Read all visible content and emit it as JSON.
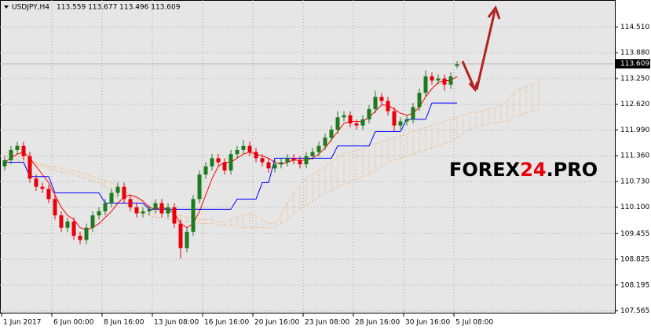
{
  "chart_data": {
    "type": "candlestick",
    "title": "USDJPY,H4",
    "quote": "113.559 113.677 113.496 113.609",
    "watermark": {
      "part1": "FOREX",
      "part2": "24",
      "part3": ".PRO"
    },
    "last_price": {
      "value": 113.609,
      "label": "113.609"
    },
    "xticks": [
      "1 Jun 2017",
      "6 Jun 00:00",
      "8 Jun 16:00",
      "13 Jun 08:00",
      "16 Jun 16:00",
      "20 Jun 16:00",
      "23 Jun 08:00",
      "28 Jun 16:00",
      "30 Jun 16:00",
      "5 Jul 08:00"
    ],
    "ylim": [
      107.5,
      115.17
    ],
    "yticks": [
      {
        "value": 107.565,
        "label": "107.565"
      },
      {
        "value": 108.195,
        "label": "108.195"
      },
      {
        "value": 108.825,
        "label": "108.825"
      },
      {
        "value": 109.455,
        "label": "109.455"
      },
      {
        "value": 110.1,
        "label": "110.100"
      },
      {
        "value": 110.73,
        "label": "110.730"
      },
      {
        "value": 111.36,
        "label": "111.360"
      },
      {
        "value": 111.99,
        "label": "111.990"
      },
      {
        "value": 112.62,
        "label": "112.620"
      },
      {
        "value": 113.25,
        "label": "113.250"
      },
      {
        "value": 113.88,
        "label": "113.880"
      },
      {
        "value": 114.51,
        "label": "114.510"
      }
    ],
    "grid": true,
    "up_color": "#1f7a1f",
    "down_color": "#e8000b",
    "open": [
      111.1,
      111.25,
      111.5,
      111.6,
      111.35,
      110.8,
      110.6,
      110.55,
      110.3,
      109.9,
      109.6,
      109.75,
      109.4,
      109.3,
      109.6,
      109.9,
      110.0,
      110.2,
      110.45,
      110.6,
      110.3,
      110.1,
      109.95,
      110.0,
      110.05,
      110.2,
      109.95,
      110.1,
      109.7,
      109.1,
      109.5,
      110.3,
      110.9,
      111.1,
      111.3,
      111.2,
      111.0,
      111.4,
      111.5,
      111.6,
      111.45,
      111.3,
      111.2,
      111.05,
      111.15,
      111.2,
      111.3,
      111.25,
      111.15,
      111.35,
      111.45,
      111.6,
      111.8,
      112.0,
      112.3,
      112.35,
      112.15,
      112.1,
      112.25,
      112.5,
      112.8,
      112.7,
      112.45,
      112.1,
      112.2,
      112.25,
      112.55,
      112.9,
      113.3,
      113.2,
      113.25,
      113.1,
      113.559
    ],
    "high": [
      111.35,
      111.6,
      111.7,
      111.7,
      111.45,
      110.9,
      110.7,
      110.65,
      110.4,
      110.0,
      109.85,
      109.85,
      109.5,
      109.7,
      110.0,
      110.1,
      110.3,
      110.55,
      110.7,
      110.7,
      110.4,
      110.2,
      110.1,
      110.15,
      110.3,
      110.3,
      110.2,
      110.2,
      109.8,
      109.6,
      110.4,
      111.0,
      111.2,
      111.4,
      111.4,
      111.3,
      111.5,
      111.6,
      111.75,
      111.7,
      111.55,
      111.4,
      111.3,
      111.25,
      111.3,
      111.4,
      111.4,
      111.35,
      111.45,
      111.55,
      111.7,
      111.9,
      112.1,
      112.45,
      112.45,
      112.45,
      112.25,
      112.35,
      112.6,
      112.95,
      112.9,
      112.8,
      112.55,
      112.3,
      112.35,
      112.65,
      113.0,
      113.45,
      113.4,
      113.35,
      113.35,
      113.4,
      113.677
    ],
    "low": [
      111.0,
      111.15,
      111.4,
      111.25,
      110.7,
      110.5,
      110.45,
      110.2,
      109.8,
      109.5,
      109.5,
      109.3,
      109.2,
      109.2,
      109.5,
      109.8,
      109.9,
      110.1,
      110.35,
      110.2,
      110.0,
      109.85,
      109.85,
      109.9,
      109.95,
      109.85,
      109.85,
      109.6,
      108.85,
      109.0,
      109.4,
      110.2,
      110.8,
      111.0,
      111.1,
      110.9,
      110.9,
      111.3,
      111.4,
      111.35,
      111.2,
      111.1,
      110.95,
      110.95,
      111.05,
      111.1,
      111.15,
      111.05,
      111.05,
      111.25,
      111.35,
      111.5,
      111.7,
      111.9,
      112.2,
      112.05,
      112.0,
      112.0,
      112.15,
      112.4,
      112.6,
      112.35,
      111.95,
      112.0,
      112.1,
      112.15,
      112.45,
      112.8,
      113.1,
      113.1,
      112.95,
      113.0,
      113.496
    ],
    "close": [
      111.25,
      111.5,
      111.6,
      111.35,
      110.8,
      110.6,
      110.55,
      110.3,
      109.9,
      109.6,
      109.75,
      109.4,
      109.3,
      109.6,
      109.9,
      110.0,
      110.2,
      110.45,
      110.6,
      110.3,
      110.1,
      109.95,
      110.0,
      110.05,
      110.2,
      109.95,
      110.1,
      109.7,
      109.1,
      109.5,
      110.3,
      110.9,
      111.1,
      111.3,
      111.2,
      111.0,
      111.4,
      111.5,
      111.6,
      111.45,
      111.3,
      111.2,
      111.05,
      111.15,
      111.2,
      111.3,
      111.25,
      111.15,
      111.35,
      111.45,
      111.6,
      111.8,
      112.0,
      112.3,
      112.35,
      112.15,
      112.1,
      112.25,
      112.5,
      112.8,
      112.7,
      112.45,
      112.1,
      112.2,
      112.25,
      112.55,
      112.9,
      113.3,
      113.2,
      113.25,
      113.1,
      113.3,
      113.609
    ],
    "lines": [
      {
        "color": "#ff0000",
        "values": [
          111.2,
          111.3,
          111.4,
          111.45,
          111.3,
          111.1,
          110.9,
          110.7,
          110.4,
          110.1,
          109.9,
          109.8,
          109.6,
          109.55,
          109.6,
          109.7,
          109.85,
          110.0,
          110.2,
          110.35,
          110.4,
          110.35,
          110.25,
          110.1,
          110.05,
          110.1,
          110.05,
          109.95,
          109.7,
          109.6,
          109.7,
          110.0,
          110.4,
          110.8,
          111.1,
          111.2,
          111.2,
          111.3,
          111.4,
          111.45,
          111.4,
          111.35,
          111.3,
          111.2,
          111.15,
          111.2,
          111.25,
          111.25,
          111.25,
          111.3,
          111.4,
          111.55,
          111.75,
          111.95,
          112.15,
          112.2,
          112.2,
          112.2,
          112.3,
          112.45,
          112.6,
          112.6,
          112.5,
          112.4,
          112.35,
          112.4,
          112.55,
          112.8,
          113.0,
          113.15,
          113.2,
          113.2,
          113.3
        ]
      },
      {
        "color": "#0000ff",
        "values": [
          111.2,
          111.2,
          111.2,
          111.2,
          110.85,
          110.85,
          110.85,
          110.85,
          110.45,
          110.45,
          110.45,
          110.45,
          110.45,
          110.45,
          110.45,
          110.45,
          110.2,
          110.2,
          110.2,
          110.2,
          110.2,
          110.2,
          110.2,
          110.05,
          110.05,
          110.05,
          110.05,
          110.05,
          110.05,
          110.05,
          110.05,
          110.05,
          110.05,
          110.05,
          110.05,
          110.05,
          110.05,
          110.3,
          110.3,
          110.3,
          110.3,
          110.7,
          110.7,
          111.3,
          111.3,
          111.3,
          111.3,
          111.3,
          111.3,
          111.3,
          111.3,
          111.3,
          111.3,
          111.6,
          111.6,
          111.6,
          111.6,
          111.6,
          111.6,
          111.95,
          111.95,
          111.95,
          111.95,
          111.95,
          112.25,
          112.25,
          112.25,
          112.25,
          112.65,
          112.65,
          112.65,
          112.65,
          112.65
        ]
      }
    ],
    "cloud": {
      "color": "#f4a460",
      "span_a": [
        111.45,
        111.4,
        111.35,
        111.3,
        111.25,
        111.2,
        111.15,
        111.1,
        111.1,
        111.05,
        111.0,
        111.0,
        110.95,
        110.9,
        110.85,
        110.8,
        110.75,
        110.7,
        110.6,
        110.5,
        110.4,
        110.3,
        110.2,
        110.1,
        110.0,
        110.0,
        109.95,
        109.9,
        109.9,
        109.85,
        109.85,
        109.8,
        109.8,
        109.8,
        109.75,
        109.75,
        109.8,
        109.85,
        109.9,
        109.95,
        109.9,
        109.8,
        109.7,
        109.7,
        109.9,
        110.2,
        110.45,
        110.65,
        110.8,
        110.9,
        111.0,
        111.1,
        111.2,
        111.3,
        111.4,
        111.45,
        111.5,
        111.55,
        111.6,
        111.65,
        111.7,
        111.75,
        111.8,
        111.85,
        111.9,
        111.95,
        112.0,
        112.05,
        112.1,
        112.15,
        112.2,
        112.25,
        112.3,
        112.35,
        112.4,
        112.42,
        112.45,
        112.5,
        112.55,
        112.6,
        112.7,
        112.9,
        113.0,
        113.05,
        113.1,
        113.15
      ],
      "span_b": [
        111.35,
        111.3,
        111.25,
        111.2,
        111.2,
        111.15,
        111.1,
        111.05,
        111.0,
        110.95,
        110.95,
        110.9,
        110.85,
        110.8,
        110.75,
        110.7,
        110.6,
        110.5,
        110.3,
        110.2,
        110.1,
        110.0,
        109.95,
        109.9,
        109.85,
        109.85,
        109.8,
        109.8,
        109.75,
        109.75,
        109.75,
        109.7,
        109.7,
        109.7,
        109.65,
        109.65,
        109.65,
        109.65,
        109.6,
        109.6,
        109.6,
        109.6,
        109.6,
        109.6,
        109.7,
        109.8,
        109.95,
        110.05,
        110.15,
        110.25,
        110.35,
        110.45,
        110.5,
        110.6,
        110.65,
        110.7,
        110.8,
        110.85,
        110.9,
        111.0,
        111.1,
        111.2,
        111.25,
        111.3,
        111.35,
        111.4,
        111.45,
        111.5,
        111.55,
        111.6,
        111.65,
        111.7,
        111.8,
        111.9,
        112.0,
        112.05,
        112.1,
        112.15,
        112.15,
        112.2,
        112.2,
        112.3,
        112.35,
        112.4,
        112.45,
        112.5
      ]
    }
  }
}
